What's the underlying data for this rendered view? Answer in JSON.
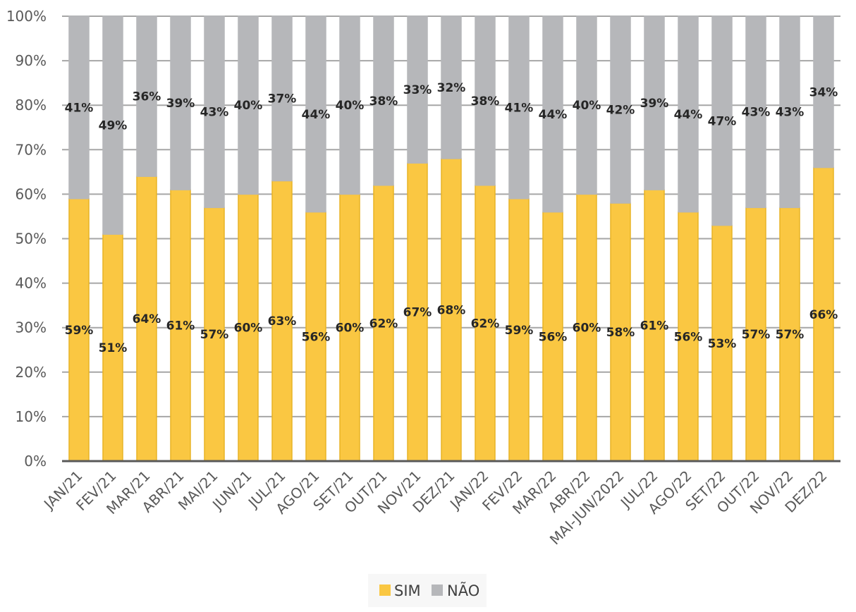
{
  "chart_data": {
    "type": "bar",
    "stacked": true,
    "percent_stacked": true,
    "title": "",
    "xlabel": "",
    "ylabel": "",
    "ylim": [
      0,
      100
    ],
    "yticks": [
      "0%",
      "10%",
      "20%",
      "30%",
      "40%",
      "50%",
      "60%",
      "70%",
      "80%",
      "90%",
      "100%"
    ],
    "grid": true,
    "legend_position": "bottom",
    "categories": [
      "JAN/21",
      "FEV/21",
      "MAR/21",
      "ABR/21",
      "MAI/21",
      "JUN/21",
      "JUL/21",
      "AGO/21",
      "SET/21",
      "OUT/21",
      "NOV/21",
      "DEZ/21",
      "JAN/22",
      "FEV/22",
      "MAR/22",
      "ABR/22",
      "MAI-JUN/2022",
      "JUL/22",
      "AGO/22",
      "SET/22",
      "OUT/22",
      "NOV/22",
      "DEZ/22"
    ],
    "series": [
      {
        "name": "SIM",
        "color": "#FAC742",
        "edge_color": "#E8B426",
        "values": [
          59,
          51,
          64,
          61,
          57,
          60,
          63,
          56,
          60,
          62,
          67,
          68,
          62,
          59,
          56,
          60,
          58,
          61,
          56,
          53,
          57,
          57,
          66
        ],
        "labels": [
          "59%",
          "51%",
          "64%",
          "61%",
          "57%",
          "60%",
          "63%",
          "56%",
          "60%",
          "62%",
          "67%",
          "68%",
          "62%",
          "59%",
          "56%",
          "60%",
          "58%",
          "61%",
          "56%",
          "53%",
          "57%",
          "57%",
          "66%"
        ]
      },
      {
        "name": "NÃO",
        "color": "#B6B7BA",
        "edge_color": "#B6B7BA",
        "values": [
          41,
          49,
          36,
          39,
          43,
          40,
          37,
          44,
          40,
          38,
          33,
          32,
          38,
          41,
          44,
          40,
          42,
          39,
          44,
          47,
          43,
          43,
          34
        ],
        "labels": [
          "41%",
          "49%",
          "36%",
          "39%",
          "43%",
          "40%",
          "37%",
          "44%",
          "40%",
          "38%",
          "33%",
          "32%",
          "38%",
          "41%",
          "44%",
          "40%",
          "42%",
          "39%",
          "44%",
          "47%",
          "43%",
          "43%",
          "34%"
        ]
      }
    ]
  }
}
